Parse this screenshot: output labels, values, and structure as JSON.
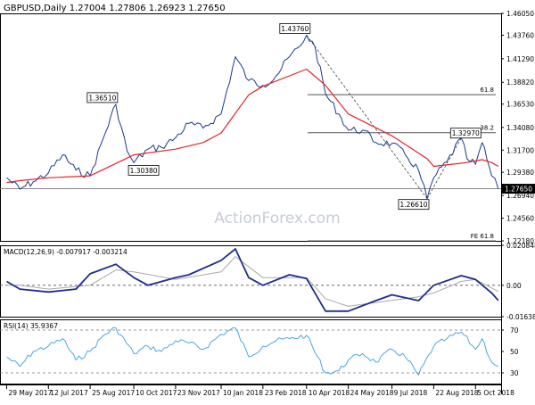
{
  "header": {
    "symbol": "GBPUSD,Daily",
    "ohlc": "1.27004 1.27806 1.26923 1.27650"
  },
  "watermark": "ActionForex.com",
  "colors": {
    "price": "#1b3a8c",
    "ma": "#e8212b",
    "macd": "#1e2d8c",
    "signal": "#a9a9a9",
    "rsi": "#49a7e0",
    "text": "#000000",
    "last_price_bg": "#000000",
    "last_price_text": "#ffffff",
    "fib_line": "#555555"
  },
  "chart_data": [
    {
      "type": "line",
      "name": "price",
      "title": "GBPUSD,Daily",
      "x_tick_labels": [
        "29 May 2017",
        "12 Jul 2017",
        "25 Aug 2017",
        "10 Oct 2017",
        "23 Nov 2017",
        "10 Jan 2018",
        "23 Feb 2018",
        "10 Apr 2018",
        "24 May 2018",
        "9 Jul 2018",
        "22 Aug 2018",
        "5 Oct 2018"
      ],
      "y_tick_labels": [
        "1.46050",
        "1.43760",
        "1.41290",
        "1.38820",
        "1.36530",
        "1.34080",
        "1.31700",
        "1.29380",
        "1.26940",
        "1.24560",
        "1.22180"
      ],
      "ylim": [
        1.2218,
        1.4605
      ],
      "last_price": "1.27650",
      "series": [
        {
          "name": "",
          "points": [
            [
              "29 May 2017",
              1.288
            ],
            [
              "12 Jun 2017",
              1.276
            ],
            [
              "26 Jun 2017",
              1.284
            ],
            [
              "12 Jul 2017",
              1.293
            ],
            [
              "27 Jul 2017",
              1.312
            ],
            [
              "10 Aug 2017",
              1.296
            ],
            [
              "25 Aug 2017",
              1.29
            ],
            [
              "8 Sep 2017",
              1.33
            ],
            [
              "21 Sep 2017",
              1.3651
            ],
            [
              "3 Oct 2017",
              1.316
            ],
            [
              "10 Oct 2017",
              1.3038
            ],
            [
              "25 Oct 2017",
              1.318
            ],
            [
              "8 Nov 2017",
              1.32
            ],
            [
              "23 Nov 2017",
              1.33
            ],
            [
              "7 Dec 2017",
              1.345
            ],
            [
              "22 Dec 2017",
              1.34
            ],
            [
              "10 Jan 2018",
              1.355
            ],
            [
              "25 Jan 2018",
              1.415
            ],
            [
              "8 Feb 2018",
              1.39
            ],
            [
              "23 Feb 2018",
              1.385
            ],
            [
              "9 Mar 2018",
              1.395
            ],
            [
              "23 Mar 2018",
              1.415
            ],
            [
              "3 Apr 2018",
              1.426
            ],
            [
              "10 Apr 2018",
              1.4376
            ],
            [
              "19 Apr 2018",
              1.425
            ],
            [
              "30 Apr 2018",
              1.376
            ],
            [
              "14 May 2018",
              1.355
            ],
            [
              "24 May 2018",
              1.338
            ],
            [
              "8 Jun 2018",
              1.338
            ],
            [
              "22 Jun 2018",
              1.325
            ],
            [
              "9 Jul 2018",
              1.324
            ],
            [
              "23 Jul 2018",
              1.312
            ],
            [
              "6 Aug 2018",
              1.296
            ],
            [
              "15 Aug 2018",
              1.2661
            ],
            [
              "22 Aug 2018",
              1.288
            ],
            [
              "5 Sep 2018",
              1.305
            ],
            [
              "20 Sep 2018",
              1.3297
            ],
            [
              "26 Sep 2018",
              1.308
            ],
            [
              "5 Oct 2018",
              1.302
            ],
            [
              "12 Oct 2018",
              1.325
            ],
            [
              "22 Oct 2018",
              1.29
            ],
            [
              "29 Oct 2018",
              1.2765
            ]
          ]
        },
        {
          "name": "",
          "points": [
            [
              "29 May 2017",
              1.283
            ],
            [
              "12 Jun 2017",
              1.285
            ],
            [
              "12 Jul 2017",
              1.288
            ],
            [
              "25 Aug 2017",
              1.29
            ],
            [
              "10 Oct 2017",
              1.312
            ],
            [
              "23 Nov 2017",
              1.318
            ],
            [
              "22 Dec 2017",
              1.325
            ],
            [
              "10 Jan 2018",
              1.335
            ],
            [
              "8 Feb 2018",
              1.375
            ],
            [
              "23 Feb 2018",
              1.384
            ],
            [
              "10 Apr 2018",
              1.402
            ],
            [
              "30 Apr 2018",
              1.385
            ],
            [
              "24 May 2018",
              1.355
            ],
            [
              "9 Jul 2018",
              1.332
            ],
            [
              "15 Aug 2018",
              1.308
            ],
            [
              "22 Aug 2018",
              1.3
            ],
            [
              "26 Sep 2018",
              1.304
            ],
            [
              "12 Oct 2018",
              1.307
            ],
            [
              "22 Oct 2018",
              1.304
            ],
            [
              "29 Oct 2018",
              1.3
            ]
          ]
        }
      ],
      "annotations": [
        {
          "label": "1.43760",
          "x": "10 Apr 2018",
          "y": 1.4376
        },
        {
          "label": "1.36510",
          "x": "21 Sep 2017",
          "y": 1.3651
        },
        {
          "label": "1.30380",
          "x": "10 Oct 2017",
          "y": 1.3038
        },
        {
          "label": "1.32970",
          "x": "20 Sep 2018",
          "y": 1.3297
        },
        {
          "label": "1.26610",
          "x": "15 Aug 2018",
          "y": 1.2661
        }
      ],
      "fib_levels": [
        {
          "label": "61.8",
          "y": 1.3752
        },
        {
          "label": "38.2",
          "y": 1.3353
        },
        {
          "label": "FE 61.8",
          "y": 1.2218
        }
      ],
      "reference_lines": [
        {
          "y": 1.2765
        }
      ],
      "trendlines": [
        {
          "from": [
            "10 Apr 2018",
            1.4376
          ],
          "to": [
            "15 Aug 2018",
            1.2661
          ]
        },
        {
          "from": [
            "15 Aug 2018",
            1.2661
          ],
          "to": [
            "20 Sep 2018",
            1.3297
          ]
        }
      ]
    },
    {
      "type": "line",
      "name": "macd",
      "title": "MACD(12,26,9) -0.007917 -0.003214",
      "y_tick_labels": [
        "0.020848",
        "0.00",
        "-0.016389"
      ],
      "ylim": [
        -0.016389,
        0.020848
      ],
      "series": [
        {
          "name": "",
          "points": [
            [
              "29 May 2017",
              0.002
            ],
            [
              "12 Jun 2017",
              -0.002
            ],
            [
              "12 Jul 2017",
              -0.0035
            ],
            [
              "10 Aug 2017",
              -0.002
            ],
            [
              "25 Aug 2017",
              0.006
            ],
            [
              "21 Sep 2017",
              0.011
            ],
            [
              "10 Oct 2017",
              0.004
            ],
            [
              "25 Oct 2017",
              0.0
            ],
            [
              "23 Nov 2017",
              0.004
            ],
            [
              "7 Dec 2017",
              0.0055
            ],
            [
              "10 Jan 2018",
              0.013
            ],
            [
              "25 Jan 2018",
              0.019
            ],
            [
              "8 Feb 2018",
              0.004
            ],
            [
              "23 Feb 2018",
              0.0
            ],
            [
              "23 Mar 2018",
              0.0055
            ],
            [
              "10 Apr 2018",
              0.0035
            ],
            [
              "30 Apr 2018",
              -0.0135
            ],
            [
              "24 May 2018",
              -0.0135
            ],
            [
              "22 Jun 2018",
              -0.008
            ],
            [
              "9 Jul 2018",
              -0.005
            ],
            [
              "6 Aug 2018",
              -0.008
            ],
            [
              "22 Aug 2018",
              0.0
            ],
            [
              "20 Sep 2018",
              0.005
            ],
            [
              "5 Oct 2018",
              0.003
            ],
            [
              "22 Oct 2018",
              -0.004
            ],
            [
              "29 Oct 2018",
              -0.007917
            ]
          ]
        },
        {
          "name": "",
          "points": [
            [
              "29 May 2017",
              0.0
            ],
            [
              "12 Jun 2017",
              0.0
            ],
            [
              "12 Jul 2017",
              -0.002
            ],
            [
              "25 Aug 2017",
              0.0
            ],
            [
              "21 Sep 2017",
              0.008
            ],
            [
              "10 Oct 2017",
              0.007
            ],
            [
              "23 Nov 2017",
              0.003
            ],
            [
              "10 Jan 2018",
              0.007
            ],
            [
              "25 Jan 2018",
              0.015
            ],
            [
              "23 Feb 2018",
              0.004
            ],
            [
              "10 Apr 2018",
              0.004
            ],
            [
              "30 Apr 2018",
              -0.007
            ],
            [
              "24 May 2018",
              -0.011
            ],
            [
              "22 Jun 2018",
              -0.009
            ],
            [
              "6 Aug 2018",
              -0.006
            ],
            [
              "22 Aug 2018",
              -0.004
            ],
            [
              "20 Sep 2018",
              0.002
            ],
            [
              "5 Oct 2018",
              0.003
            ],
            [
              "29 Oct 2018",
              -0.003214
            ]
          ]
        }
      ],
      "zero_line": 0
    },
    {
      "type": "line",
      "name": "rsi",
      "title": "RSI(14) 35.9367",
      "y_tick_labels": [
        "70",
        "50",
        "30"
      ],
      "ylim": [
        20,
        80
      ],
      "reference_lines": [
        70,
        30
      ],
      "series": [
        {
          "name": "",
          "points": [
            [
              "29 May 2017",
              45
            ],
            [
              "12 Jun 2017",
              36
            ],
            [
              "26 Jun 2017",
              50
            ],
            [
              "12 Jul 2017",
              55
            ],
            [
              "27 Jul 2017",
              62
            ],
            [
              "10 Aug 2017",
              42
            ],
            [
              "25 Aug 2017",
              50
            ],
            [
              "8 Sep 2017",
              65
            ],
            [
              "21 Sep 2017",
              72
            ],
            [
              "10 Oct 2017",
              48
            ],
            [
              "25 Oct 2017",
              55
            ],
            [
              "8 Nov 2017",
              50
            ],
            [
              "23 Nov 2017",
              60
            ],
            [
              "7 Dec 2017",
              58
            ],
            [
              "22 Dec 2017",
              52
            ],
            [
              "10 Jan 2018",
              66
            ],
            [
              "25 Jan 2018",
              72
            ],
            [
              "8 Feb 2018",
              45
            ],
            [
              "23 Feb 2018",
              55
            ],
            [
              "9 Mar 2018",
              60
            ],
            [
              "23 Mar 2018",
              62
            ],
            [
              "10 Apr 2018",
              65
            ],
            [
              "30 Apr 2018",
              30
            ],
            [
              "14 May 2018",
              32
            ],
            [
              "24 May 2018",
              42
            ],
            [
              "8 Jun 2018",
              48
            ],
            [
              "22 Jun 2018",
              40
            ],
            [
              "9 Jul 2018",
              52
            ],
            [
              "23 Jul 2018",
              45
            ],
            [
              "6 Aug 2018",
              28
            ],
            [
              "22 Aug 2018",
              55
            ],
            [
              "5 Sep 2018",
              62
            ],
            [
              "20 Sep 2018",
              68
            ],
            [
              "5 Oct 2018",
              52
            ],
            [
              "12 Oct 2018",
              62
            ],
            [
              "22 Oct 2018",
              40
            ],
            [
              "29 Oct 2018",
              35.9367
            ]
          ]
        }
      ]
    }
  ]
}
